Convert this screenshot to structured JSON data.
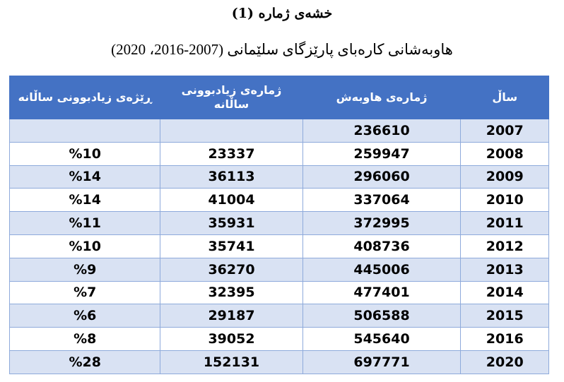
{
  "title": "خشەی ژمارە (1)",
  "subtitle": "هاوبەشانی کارەبای پارێزگای سلێمانی (2007-2016، 2020)",
  "table": {
    "headers": [
      "ساڵ",
      "ژمارەی هاوبەش",
      "ژمارەی زیادبوونی ساڵانە",
      "ڕێژەی زیادبوونی ساڵانە"
    ],
    "rows": [
      {
        "year": "2007",
        "subscribers": "236610",
        "increase": "",
        "rate": ""
      },
      {
        "year": "2008",
        "subscribers": "259947",
        "increase": "23337",
        "rate": "%10"
      },
      {
        "year": "2009",
        "subscribers": "296060",
        "increase": "36113",
        "rate": "%14"
      },
      {
        "year": "2010",
        "subscribers": "337064",
        "increase": "41004",
        "rate": "%14"
      },
      {
        "year": "2011",
        "subscribers": "372995",
        "increase": "35931",
        "rate": "%11"
      },
      {
        "year": "2012",
        "subscribers": "408736",
        "increase": "35741",
        "rate": "%10"
      },
      {
        "year": "2013",
        "subscribers": "445006",
        "increase": "36270",
        "rate": "%9"
      },
      {
        "year": "2014",
        "subscribers": "477401",
        "increase": "32395",
        "rate": "%7"
      },
      {
        "year": "2015",
        "subscribers": "506588",
        "increase": "29187",
        "rate": "%6"
      },
      {
        "year": "2016",
        "subscribers": "545640",
        "increase": "39052",
        "rate": "%8"
      },
      {
        "year": "2020",
        "subscribers": "697771",
        "increase": "152131",
        "rate": "%28"
      }
    ]
  },
  "colors": {
    "header_bg": "#4472c4",
    "band_bg": "#d9e2f3",
    "border": "#8eaadb"
  }
}
